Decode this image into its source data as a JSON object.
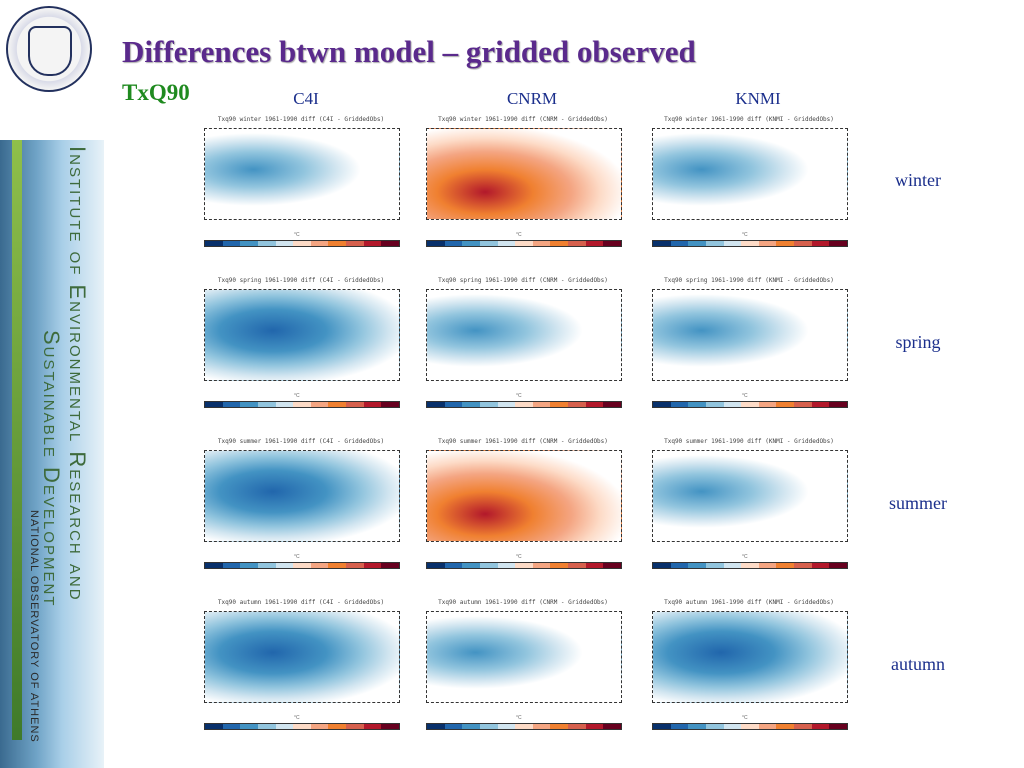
{
  "header": {
    "title": "Differences btwn model – gridded observed",
    "subtitle": "TxQ90"
  },
  "columns": [
    "C4I",
    "CNRM",
    "KNMI"
  ],
  "rows": [
    "winter",
    "spring",
    "summer",
    "autumn"
  ],
  "sidebar": {
    "line1": "Institute of Environmental Research and",
    "line2": "Sustainable Development",
    "line3": "NATIONAL OBSERVATORY OF ATHENS"
  },
  "panel_titles": [
    [
      "Txq90 winter 1961-1990 diff (C4I - GriddedObs)",
      "Txq90 winter 1961-1990 diff (CNRM - GriddedObs)",
      "Txq90 winter 1961-1990 diff (KNMI - GriddedObs)"
    ],
    [
      "Txq90 spring 1961-1990 diff (C4I - GriddedObs)",
      "Txq90 spring 1961-1990 diff (CNRM - GriddedObs)",
      "Txq90 spring 1961-1990 diff (KNMI - GriddedObs)"
    ],
    [
      "Txq90 summer 1961-1990 diff (C4I - GriddedObs)",
      "Txq90 summer 1961-1990 diff (CNRM - GriddedObs)",
      "Txq90 summer 1961-1990 diff (KNMI - GriddedObs)"
    ],
    [
      "Txq90 autumn 1961-1990 diff (C4I - GriddedObs)",
      "Txq90 autumn 1961-1990 diff (CNRM - GriddedObs)",
      "Txq90 autumn 1961-1990 diff (KNMI - GriddedObs)"
    ]
  ],
  "panel_tone": [
    [
      "mixed",
      "warm",
      "mixed"
    ],
    [
      "cold",
      "mixed",
      "mixed"
    ],
    [
      "cold",
      "warm",
      "mixed"
    ],
    [
      "cold",
      "mixed",
      "cold"
    ]
  ],
  "unit_label": "°C",
  "colors": {
    "title": "#5a2a8c",
    "subtitle": "#1f8a1f",
    "headings": "#1b2f8c",
    "colorbar": [
      "#08306b",
      "#2166ac",
      "#4393c3",
      "#92c5de",
      "#d1e5f0",
      "#fddbc7",
      "#f4a582",
      "#f08030",
      "#d6604d",
      "#b2182b",
      "#67001f"
    ]
  }
}
